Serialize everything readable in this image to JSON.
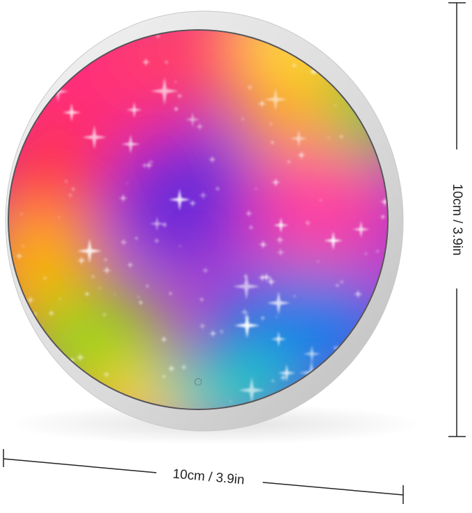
{
  "dimensions": {
    "height": "10cm / 3.9in",
    "width": "10cm / 3.9in"
  }
}
